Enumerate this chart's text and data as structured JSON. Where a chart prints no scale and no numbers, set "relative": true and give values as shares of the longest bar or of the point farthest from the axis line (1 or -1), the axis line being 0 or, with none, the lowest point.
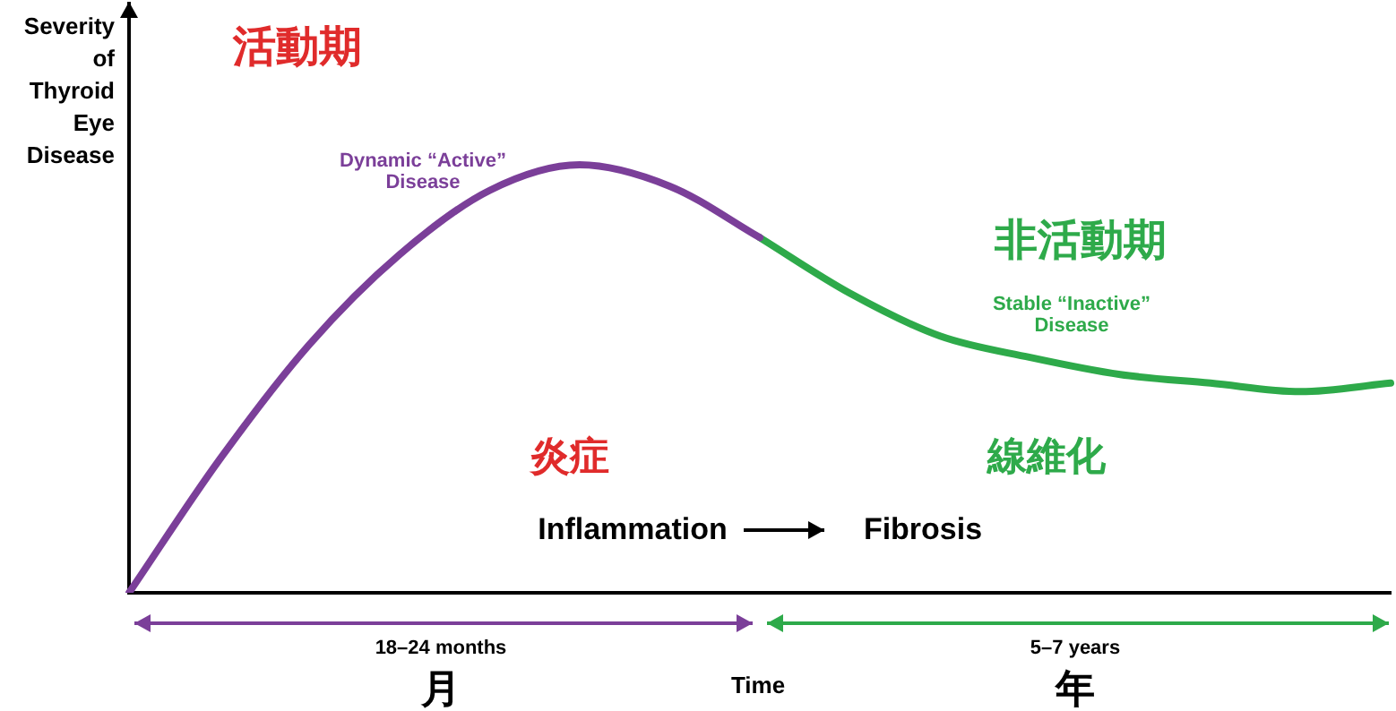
{
  "chart_data": {
    "type": "line",
    "relative": true,
    "xlabel": "Time",
    "ylabel": "Severity of Thyroid Eye Disease",
    "categories": [
      null,
      null,
      null,
      null,
      null,
      null,
      null,
      null,
      null,
      null,
      null,
      null,
      null,
      null,
      null
    ],
    "series": [
      {
        "name": "Dynamic “Active” Disease",
        "color": "#7b3f99",
        "values": [
          0,
          0.31,
          0.58,
          0.79,
          0.94,
          1.0,
          0.95,
          0.83,
          null,
          null,
          null,
          null,
          null,
          null,
          null
        ]
      },
      {
        "name": "Stable “Inactive” Disease",
        "color": "#2eaa4a",
        "values": [
          null,
          null,
          null,
          null,
          null,
          null,
          null,
          0.83,
          0.7,
          0.6,
          0.55,
          0.51,
          0.49,
          0.47,
          0.49
        ]
      }
    ],
    "annotations": [
      "活動期",
      "非活動期",
      "炎症",
      "線維化",
      "Inflammation",
      "Fibrosis",
      "18–24 months",
      "月",
      "5–7 years",
      "年"
    ],
    "legend": false,
    "grid": false,
    "marker": "none",
    "line_style": "solid",
    "tick_labels": false
  }
}
